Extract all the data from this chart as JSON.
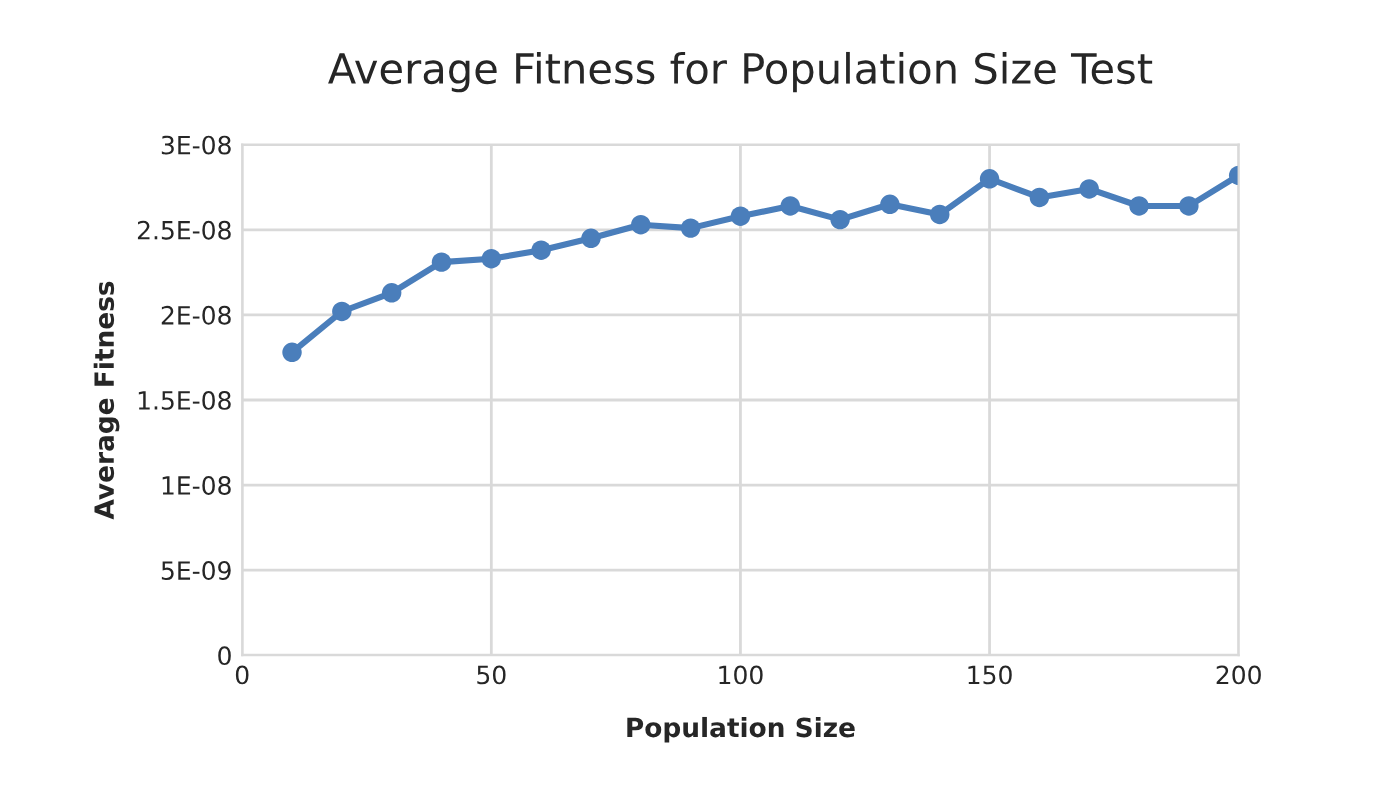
{
  "chart_data": {
    "type": "line",
    "title": "Average Fitness for Population Size Test",
    "xlabel": "Population Size",
    "ylabel": "Average Fitness",
    "x": [
      10,
      20,
      30,
      40,
      50,
      60,
      70,
      80,
      90,
      100,
      110,
      120,
      130,
      140,
      150,
      160,
      170,
      180,
      190,
      200
    ],
    "series": [
      {
        "color": "#4a7ebb",
        "values": [
          1.78e-08,
          2.02e-08,
          2.13e-08,
          2.31e-08,
          2.33e-08,
          2.38e-08,
          2.45e-08,
          2.53e-08,
          2.51e-08,
          2.58e-08,
          2.64e-08,
          2.56e-08,
          2.65e-08,
          2.59e-08,
          2.8e-08,
          2.69e-08,
          2.74e-08,
          2.64e-08,
          2.64e-08,
          2.82e-08
        ]
      }
    ],
    "xlim": [
      0,
      200
    ],
    "xticks": [
      0,
      50,
      100,
      150,
      200
    ],
    "ylim": [
      0,
      3e-08
    ],
    "yticks": [
      0,
      {
        "value": 5e-09,
        "label": "5E-09"
      },
      {
        "value": 1e-08,
        "label": "1E-08"
      },
      {
        "value": 1.5e-08,
        "label": "1.5E-08"
      },
      {
        "value": 2e-08,
        "label": "2E-08"
      },
      {
        "value": 2.5e-08,
        "label": "2.5E-08"
      },
      {
        "value": 3e-08,
        "label": "3E-08"
      }
    ],
    "grid": true,
    "marker": "circle",
    "line_style": "solid",
    "legend": false
  }
}
